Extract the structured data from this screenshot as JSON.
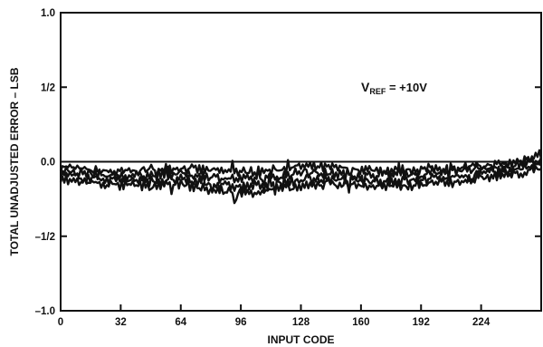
{
  "chart_data": {
    "type": "line",
    "xlabel": "INPUT CODE",
    "ylabel": "TOTAL UNADJUSTED ERROR – LSB",
    "xlim": [
      0,
      256
    ],
    "ylim": [
      -1.0,
      1.0
    ],
    "x_ticks": [
      0,
      32,
      64,
      96,
      128,
      160,
      192,
      224
    ],
    "y_ticks": [
      {
        "value": 1.0,
        "label": "1.0"
      },
      {
        "value": 0.5,
        "label": "1/2"
      },
      {
        "value": 0.0,
        "label": "0.0"
      },
      {
        "value": -0.5,
        "label": "–1/2"
      },
      {
        "value": -1.0,
        "label": "–1.0"
      }
    ],
    "grid": false,
    "annotation": {
      "main": "V",
      "sub": "REF",
      "rest": " = +10V"
    },
    "series": [
      {
        "x": [
          0,
          16,
          32,
          48,
          64,
          80,
          96,
          112,
          128,
          144,
          160,
          176,
          192,
          208,
          224,
          240,
          255
        ],
        "values": [
          -0.03,
          -0.06,
          -0.07,
          -0.05,
          -0.04,
          -0.06,
          -0.07,
          -0.06,
          -0.03,
          -0.04,
          -0.05,
          -0.06,
          -0.05,
          -0.04,
          -0.03,
          -0.01,
          0.05
        ]
      },
      {
        "x": [
          0,
          16,
          32,
          48,
          64,
          80,
          96,
          112,
          128,
          144,
          160,
          176,
          192,
          208,
          224,
          240,
          255
        ],
        "values": [
          -0.06,
          -0.08,
          -0.1,
          -0.09,
          -0.08,
          -0.1,
          -0.12,
          -0.11,
          -0.07,
          -0.08,
          -0.09,
          -0.09,
          -0.08,
          -0.06,
          -0.05,
          -0.03,
          0.02
        ]
      },
      {
        "x": [
          0,
          16,
          32,
          48,
          64,
          80,
          96,
          112,
          128,
          144,
          160,
          176,
          192,
          208,
          224,
          240,
          255
        ],
        "values": [
          -0.09,
          -0.11,
          -0.12,
          -0.13,
          -0.12,
          -0.15,
          -0.17,
          -0.15,
          -0.12,
          -0.12,
          -0.13,
          -0.13,
          -0.12,
          -0.1,
          -0.08,
          -0.06,
          -0.02
        ]
      },
      {
        "x": [
          0,
          16,
          32,
          48,
          64,
          80,
          96,
          112,
          128,
          144,
          160,
          176,
          192,
          208,
          224,
          240,
          255
        ],
        "values": [
          -0.12,
          -0.14,
          -0.16,
          -0.16,
          -0.15,
          -0.19,
          -0.21,
          -0.19,
          -0.17,
          -0.15,
          -0.16,
          -0.17,
          -0.15,
          -0.13,
          -0.11,
          -0.09,
          -0.05
        ]
      }
    ]
  }
}
